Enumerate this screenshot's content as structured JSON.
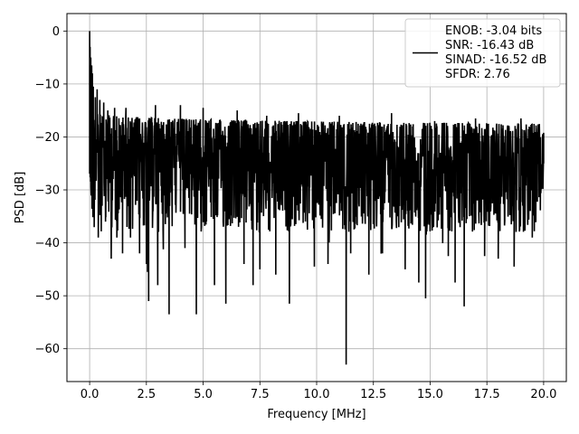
{
  "chart_data": {
    "type": "line",
    "xlabel": "Frequency [MHz]",
    "ylabel": "PSD [dB]",
    "xlim": [
      -1.0,
      21.0
    ],
    "ylim": [
      -66.2,
      3.3
    ],
    "x_ticks": [
      0.0,
      2.5,
      5.0,
      7.5,
      10.0,
      12.5,
      15.0,
      17.5,
      20.0
    ],
    "x_tick_labels": [
      "0.0",
      "2.5",
      "5.0",
      "7.5",
      "10.0",
      "12.5",
      "15.0",
      "17.5",
      "20.0"
    ],
    "y_ticks": [
      0,
      -10,
      -20,
      -30,
      -40,
      -50,
      -60
    ],
    "y_tick_labels": [
      "0",
      "−10",
      "−20",
      "−30",
      "−40",
      "−50",
      "−60"
    ],
    "grid": true,
    "legend_position": "upper right",
    "series": [
      {
        "name": "ENOB: -3.04 bits\nSNR: -16.43 dB\nSINAD: -16.52 dB\nSFDR: 2.76",
        "color": "#000000",
        "x_range": [
          0.0,
          20.0
        ],
        "num_points": 1800,
        "noise_floor": {
          "upper_envelope_db": -15.5,
          "lower_envelope_db": -38.0
        },
        "values": [
          [
            0.0,
            0.0
          ],
          [
            0.01,
            -12.5
          ],
          [
            0.02,
            -3.0
          ],
          [
            0.04,
            -14.0
          ],
          [
            0.05,
            -5.0
          ],
          [
            0.07,
            -12.0
          ],
          [
            0.09,
            -6.5
          ],
          [
            0.1,
            -18.0
          ],
          [
            0.12,
            -8.0
          ],
          [
            0.14,
            -27.0
          ],
          [
            0.16,
            -10.5
          ],
          [
            0.2,
            -22.0
          ],
          [
            0.25,
            -12.5
          ],
          [
            0.3,
            -25.0
          ],
          [
            0.33,
            -11.0
          ],
          [
            0.38,
            -39.0
          ],
          [
            0.45,
            -13.0
          ],
          [
            0.55,
            -33.0
          ],
          [
            0.62,
            -13.5
          ],
          [
            0.7,
            -36.0
          ],
          [
            0.8,
            -15.0
          ],
          [
            0.95,
            -43.0
          ],
          [
            1.1,
            -14.5
          ],
          [
            1.2,
            -39.0
          ],
          [
            1.45,
            -42.0
          ],
          [
            1.6,
            -14.5
          ],
          [
            1.8,
            -39.0
          ],
          [
            2.2,
            -42.0
          ],
          [
            2.5,
            -44.0
          ],
          [
            2.55,
            -45.5
          ],
          [
            2.6,
            -51.0
          ],
          [
            2.9,
            -14.0
          ],
          [
            3.0,
            -48.0
          ],
          [
            3.5,
            -53.5
          ],
          [
            4.0,
            -14.0
          ],
          [
            4.2,
            -41.0
          ],
          [
            4.7,
            -53.5
          ],
          [
            5.0,
            -14.5
          ],
          [
            5.5,
            -48.0
          ],
          [
            6.0,
            -51.5
          ],
          [
            6.5,
            -15.0
          ],
          [
            6.8,
            -44.0
          ],
          [
            7.2,
            -48.0
          ],
          [
            7.5,
            -45.0
          ],
          [
            7.8,
            -16.0
          ],
          [
            8.2,
            -46.0
          ],
          [
            8.8,
            -51.5
          ],
          [
            9.2,
            -15.5
          ],
          [
            9.9,
            -44.5
          ],
          [
            10.5,
            -44.0
          ],
          [
            11.0,
            -16.0
          ],
          [
            11.3,
            -63.0
          ],
          [
            11.5,
            -42.0
          ],
          [
            12.3,
            -46.0
          ],
          [
            12.9,
            -42.0
          ],
          [
            13.3,
            -15.5
          ],
          [
            13.9,
            -45.0
          ],
          [
            14.5,
            -47.5
          ],
          [
            14.8,
            -50.5
          ],
          [
            15.2,
            -17.0
          ],
          [
            15.8,
            -42.5
          ],
          [
            16.1,
            -47.5
          ],
          [
            16.5,
            -52.0
          ],
          [
            17.0,
            -16.5
          ],
          [
            17.4,
            -42.5
          ],
          [
            18.0,
            -43.0
          ],
          [
            18.7,
            -44.5
          ],
          [
            19.0,
            -16.5
          ],
          [
            19.5,
            -39.0
          ],
          [
            20.0,
            -25.0
          ]
        ]
      }
    ]
  }
}
